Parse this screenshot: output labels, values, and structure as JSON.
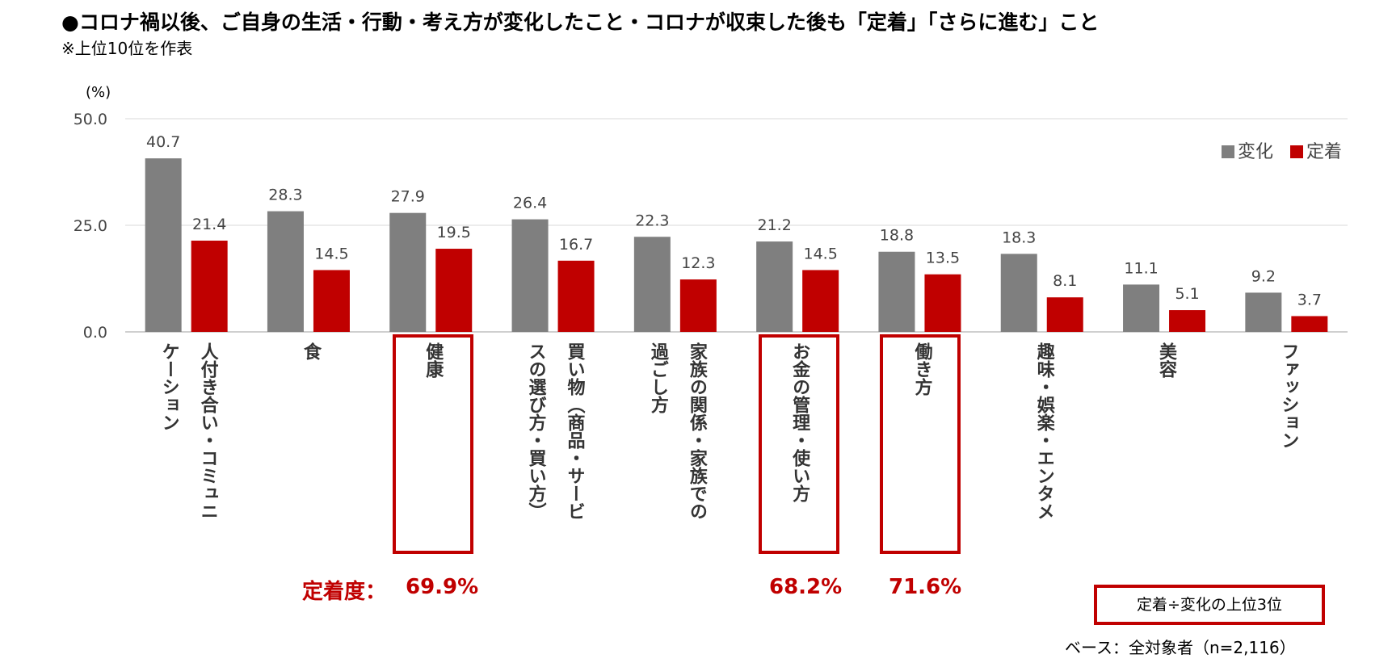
{
  "header": {
    "title": "●コロナ禍以後、ご自身の生活・行動・考え方が変化したこと・コロナが収束した後も「定着」「さらに進む」こと",
    "subtitle": "※上位10位を作表"
  },
  "chart_data": {
    "type": "bar",
    "ylabel": "(%)",
    "ylim": [
      0,
      50
    ],
    "yticks": [
      "0.0",
      "25.0",
      "50.0"
    ],
    "grid": true,
    "legend_position": "top-right",
    "categories": [
      "人付き合い・コミュニケーション",
      "食",
      "健康",
      "買い物（商品・サービスの選び方・買い方）",
      "家族の関係・家族での過ごし方",
      "お金の管理・使い方",
      "働き方",
      "趣味・娯楽・エンタメ",
      "美容",
      "ファッション"
    ],
    "category_lines": [
      [
        "人付き合い・コミュニ",
        "ケーション"
      ],
      [
        "食"
      ],
      [
        "健康"
      ],
      [
        "買い物（商品・サービ",
        "スの選び方・買い方）"
      ],
      [
        "家族の関係・家族での",
        "過ごし方"
      ],
      [
        "お金の管理・使い方"
      ],
      [
        "働き方"
      ],
      [
        "趣味・娯楽・エンタメ"
      ],
      [
        "美容"
      ],
      [
        "ファッション"
      ]
    ],
    "series": [
      {
        "name": "変化",
        "color": "#7f7f7f",
        "values": [
          40.7,
          28.3,
          27.9,
          26.4,
          22.3,
          21.2,
          18.8,
          18.3,
          11.1,
          9.2
        ],
        "labels": [
          "40.7",
          "28.3",
          "27.9",
          "26.4",
          "22.3",
          "21.2",
          "18.8",
          "18.3",
          "11.1",
          "9.2"
        ]
      },
      {
        "name": "定着",
        "color": "#c00000",
        "values": [
          21.4,
          14.5,
          19.5,
          16.7,
          12.3,
          14.5,
          13.5,
          8.1,
          5.1,
          3.7
        ],
        "labels": [
          "21.4",
          "14.5",
          "19.5",
          "16.7",
          "12.3",
          "14.5",
          "13.5",
          "8.1",
          "5.1",
          "3.7"
        ]
      }
    ],
    "highlighted_categories": [
      "健康",
      "お金の管理・使い方",
      "働き方"
    ]
  },
  "retention": {
    "label": "定着度：",
    "values": [
      {
        "category": "健康",
        "text": "69.9%"
      },
      {
        "category": "お金の管理・使い方",
        "text": "68.2%"
      },
      {
        "category": "働き方",
        "text": "71.6%"
      }
    ]
  },
  "note": "定着÷変化の上位3位",
  "base": "ベース：全対象者（n=2,116）"
}
